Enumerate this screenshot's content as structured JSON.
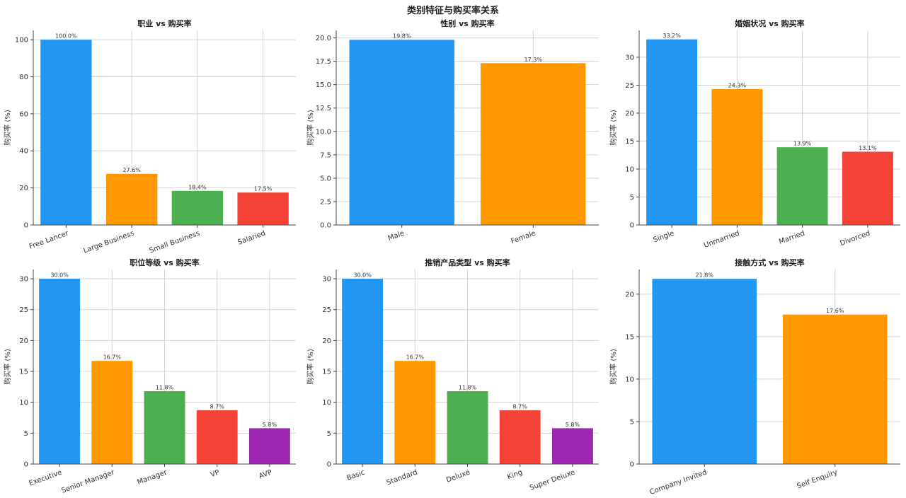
{
  "figure": {
    "title": "类别特征与购买率关系"
  },
  "chart_data": [
    {
      "type": "bar",
      "title": "职业 vs 购买率",
      "ylabel": "购买率 (%)",
      "categories": [
        "Free Lancer",
        "Large Business",
        "Small Business",
        "Salaried"
      ],
      "values": [
        100.0,
        27.6,
        18.4,
        17.5
      ],
      "value_labels": [
        "100.0%",
        "27.6%",
        "18.4%",
        "17.5%"
      ],
      "ylim": [
        0,
        105
      ],
      "yticks": [
        0,
        20,
        40,
        60,
        80,
        100
      ],
      "ytick_labels": [
        "0",
        "20",
        "40",
        "60",
        "80",
        "100"
      ],
      "grid": true,
      "colors": [
        "#2196F3",
        "#FF9800",
        "#4CAF50",
        "#F44336"
      ]
    },
    {
      "type": "bar",
      "title": "性别 vs 购买率",
      "ylabel": "购买率 (%)",
      "categories": [
        "Male",
        "Female"
      ],
      "values": [
        19.8,
        17.3
      ],
      "value_labels": [
        "19.8%",
        "17.3%"
      ],
      "ylim": [
        0,
        20.8
      ],
      "yticks": [
        0,
        2.5,
        5,
        7.5,
        10,
        12.5,
        15,
        17.5,
        20
      ],
      "ytick_labels": [
        "0.0",
        "2.5",
        "5.0",
        "7.5",
        "10.0",
        "12.5",
        "15.0",
        "17.5",
        "20.0"
      ],
      "grid": true,
      "colors": [
        "#2196F3",
        "#FF9800"
      ]
    },
    {
      "type": "bar",
      "title": "婚姻状况 vs 购买率",
      "ylabel": "购买率 (%)",
      "categories": [
        "Single",
        "Unmarried",
        "Married",
        "Divorced"
      ],
      "values": [
        33.2,
        24.3,
        13.9,
        13.1
      ],
      "value_labels": [
        "33.2%",
        "24.3%",
        "13.9%",
        "13.1%"
      ],
      "ylim": [
        0,
        34.8
      ],
      "yticks": [
        0,
        5,
        10,
        15,
        20,
        25,
        30
      ],
      "ytick_labels": [
        "0",
        "5",
        "10",
        "15",
        "20",
        "25",
        "30"
      ],
      "grid": true,
      "colors": [
        "#2196F3",
        "#FF9800",
        "#4CAF50",
        "#F44336"
      ]
    },
    {
      "type": "bar",
      "title": "职位等级 vs 购买率",
      "ylabel": "购买率 (%)",
      "categories": [
        "Executive",
        "Senior Manager",
        "Manager",
        "VP",
        "AVP"
      ],
      "values": [
        30.0,
        16.7,
        11.8,
        8.7,
        5.8
      ],
      "value_labels": [
        "30.0%",
        "16.7%",
        "11.8%",
        "8.7%",
        "5.8%"
      ],
      "ylim": [
        0,
        31.5
      ],
      "yticks": [
        0,
        5,
        10,
        15,
        20,
        25,
        30
      ],
      "ytick_labels": [
        "0",
        "5",
        "10",
        "15",
        "20",
        "25",
        "30"
      ],
      "grid": true,
      "colors": [
        "#2196F3",
        "#FF9800",
        "#4CAF50",
        "#F44336",
        "#9C27B0"
      ]
    },
    {
      "type": "bar",
      "title": "推销产品类型 vs 购买率",
      "ylabel": "购买率 (%)",
      "categories": [
        "Basic",
        "Standard",
        "Deluxe",
        "King",
        "Super Deluxe"
      ],
      "values": [
        30.0,
        16.7,
        11.8,
        8.7,
        5.8
      ],
      "value_labels": [
        "30.0%",
        "16.7%",
        "11.8%",
        "8.7%",
        "5.8%"
      ],
      "ylim": [
        0,
        31.5
      ],
      "yticks": [
        0,
        5,
        10,
        15,
        20,
        25,
        30
      ],
      "ytick_labels": [
        "0",
        "5",
        "10",
        "15",
        "20",
        "25",
        "30"
      ],
      "grid": true,
      "colors": [
        "#2196F3",
        "#FF9800",
        "#4CAF50",
        "#F44336",
        "#9C27B0"
      ]
    },
    {
      "type": "bar",
      "title": "接触方式 vs 购买率",
      "ylabel": "购买率 (%)",
      "categories": [
        "Company Invited",
        "Self Enquiry"
      ],
      "values": [
        21.8,
        17.6
      ],
      "value_labels": [
        "21.8%",
        "17.6%"
      ],
      "ylim": [
        0,
        22.9
      ],
      "yticks": [
        0,
        5,
        10,
        15,
        20
      ],
      "ytick_labels": [
        "0",
        "5",
        "10",
        "15",
        "20"
      ],
      "grid": true,
      "colors": [
        "#2196F3",
        "#FF9800"
      ]
    }
  ]
}
